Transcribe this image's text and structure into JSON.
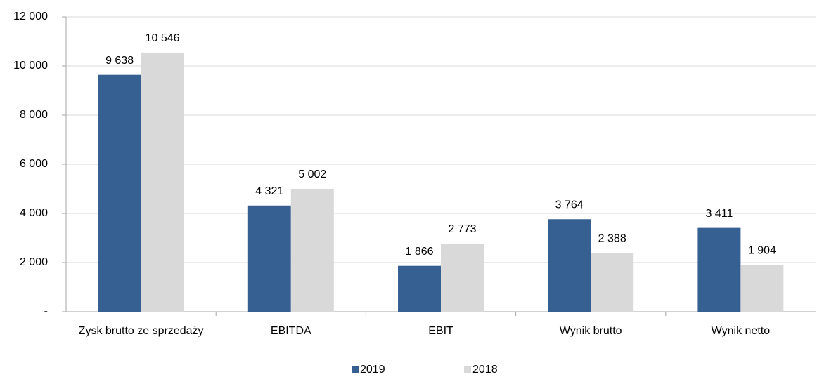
{
  "chart_data": {
    "type": "bar",
    "categories": [
      "Zysk brutto ze sprzedaży",
      "EBITDA",
      "EBIT",
      "Wynik brutto",
      "Wynik netto"
    ],
    "series": [
      {
        "name": "2019",
        "color": "#376092",
        "values": [
          9638,
          4321,
          1866,
          3764,
          3411
        ],
        "value_labels": [
          "9 638",
          "4 321",
          "1 866",
          "3 764",
          "3 411"
        ]
      },
      {
        "name": "2018",
        "color": "#d9d9d9",
        "values": [
          10546,
          5002,
          2773,
          2388,
          1904
        ],
        "value_labels": [
          "10 546",
          "5 002",
          "2 773",
          "2 388",
          "1 904"
        ]
      }
    ],
    "ylim": [
      0,
      12000
    ],
    "yticks": [
      {
        "value": 0,
        "label": "-"
      },
      {
        "value": 2000,
        "label": "2 000"
      },
      {
        "value": 4000,
        "label": "4 000"
      },
      {
        "value": 6000,
        "label": "6 000"
      },
      {
        "value": 8000,
        "label": "8 000"
      },
      {
        "value": 10000,
        "label": "10 000"
      },
      {
        "value": 12000,
        "label": "12 000"
      }
    ],
    "grid": true,
    "legend": "bottom"
  }
}
